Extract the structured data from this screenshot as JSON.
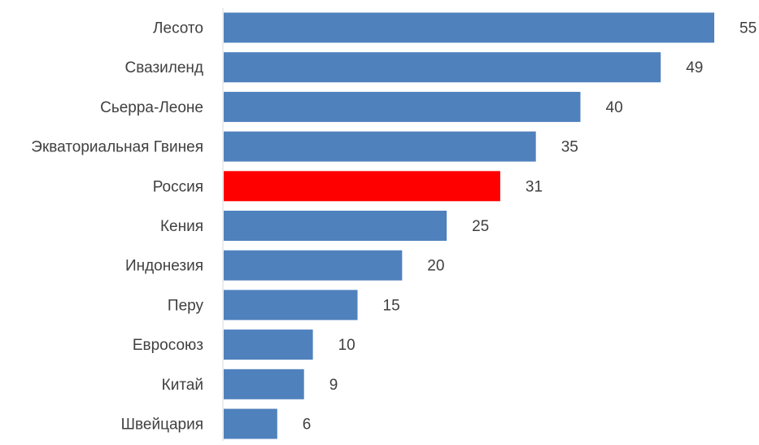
{
  "chart_data": {
    "type": "bar",
    "orientation": "horizontal",
    "title": "",
    "xlabel": "",
    "ylabel": "",
    "categories": [
      "Лесото",
      "Свазиленд",
      "Сьерра-Леоне",
      "Экваториальная Гвинея",
      "Россия",
      "Кения",
      "Индонезия",
      "Перу",
      "Евросоюз",
      "Китай",
      "Швейцария"
    ],
    "values": [
      55,
      49,
      40,
      35,
      31,
      25,
      20,
      15,
      10,
      9,
      6
    ],
    "value_labels": [
      "55",
      "49",
      "40",
      "35",
      "31",
      "25",
      "20",
      "15",
      "10",
      "9",
      "6"
    ],
    "xlim": [
      0,
      55
    ],
    "grid": false,
    "legend": "none",
    "colors": {
      "default_bar": "#4f81bd",
      "highlight_bar": "#ff0000",
      "axis": "#d9d9d9",
      "text": "#404040"
    },
    "highlight_category": "Россия"
  }
}
